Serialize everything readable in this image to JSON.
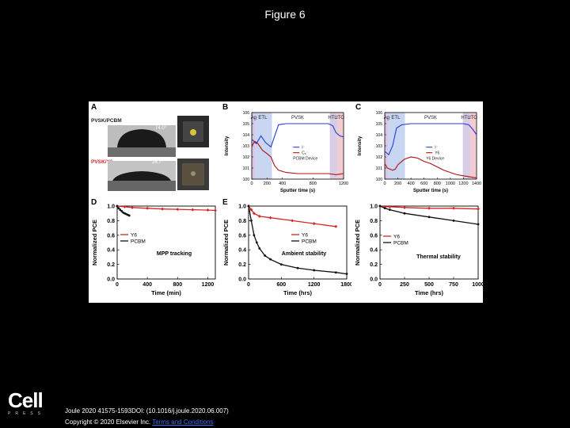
{
  "page_title": "Figure 6",
  "footer": {
    "citation": "Joule 2020 41575-1593DOI: (10.1016/j.joule.2020.06.007)",
    "copyright_prefix": "Copyright © 2020 Elsevier Inc.",
    "copyright_link": "Terms and Conditions"
  },
  "logo": {
    "main": "Cell",
    "sub": "PRESS"
  },
  "panels": {
    "A": {
      "letter": "A",
      "label_top": "PVSK/PCBM",
      "label_bottom": "PVSK/Y6",
      "angle_top": "74.0°",
      "angle_bottom": "26.7°"
    },
    "B": {
      "letter": "B"
    },
    "C": {
      "letter": "C"
    },
    "D": {
      "letter": "D"
    },
    "E": {
      "letter": "E"
    },
    "F": {
      "letter": ""
    }
  },
  "colors": {
    "red": "#d62728",
    "black": "#111111",
    "blue": "#1f3fd6",
    "dark_red": "#b01010"
  },
  "chart_data": [
    {
      "id": "B",
      "type": "line",
      "title": "",
      "xlabel": "Sputter time (s)",
      "ylabel": "Intensity",
      "xlim": [
        0,
        1200
      ],
      "ylim_exponent": [
        0,
        6
      ],
      "log_y": true,
      "x_ticks": [
        "0",
        "200",
        "400",
        "800",
        "1200"
      ],
      "y_ticks": [
        "10^0",
        "10^1",
        "10^2",
        "10^3",
        "10^4",
        "10^5",
        "10^6"
      ],
      "regions": [
        "Ag",
        "ETL",
        "PVSK",
        "HTL",
        "ITO"
      ],
      "legend": [
        "I⁻",
        "C₆⁻",
        "PCBM Device"
      ],
      "series": [
        {
          "name": "I⁻",
          "x": [
            0,
            60,
            120,
            180,
            250,
            350,
            450,
            600,
            800,
            1000,
            1060,
            1100,
            1150,
            1200
          ],
          "y": [
            3.6,
            3.2,
            3.9,
            3.3,
            2.9,
            4.9,
            5.0,
            5.0,
            5.0,
            5.0,
            4.8,
            4.2,
            3.9,
            3.8
          ]
        },
        {
          "name": "C₆⁻",
          "x": [
            0,
            40,
            80,
            140,
            200,
            250,
            300,
            350,
            450,
            600,
            800,
            1000,
            1100,
            1200
          ],
          "y": [
            3.0,
            3.4,
            3.2,
            2.6,
            2.3,
            2.0,
            1.2,
            0.8,
            0.6,
            0.5,
            0.5,
            0.5,
            0.4,
            0.5
          ]
        }
      ]
    },
    {
      "id": "C",
      "type": "line",
      "title": "",
      "xlabel": "Sputter time (s)",
      "ylabel": "Intensity",
      "xlim": [
        0,
        1400
      ],
      "ylim_exponent": [
        0,
        6
      ],
      "log_y": true,
      "x_ticks": [
        "0",
        "200",
        "400",
        "600",
        "800",
        "1000",
        "1200",
        "1400"
      ],
      "y_ticks": [
        "10^0",
        "10^1",
        "10^2",
        "10^3",
        "10^4",
        "10^5",
        "10^6"
      ],
      "regions": [
        "Ag",
        "ETL",
        "PVSK",
        "HTL",
        "ITO"
      ],
      "legend": [
        "I⁻",
        "Y6",
        "Y6 Device"
      ],
      "series": [
        {
          "name": "I⁻",
          "x": [
            0,
            60,
            120,
            180,
            260,
            400,
            600,
            800,
            1000,
            1200,
            1280,
            1340,
            1400
          ],
          "y": [
            2.5,
            2.2,
            3.0,
            4.6,
            4.9,
            5.0,
            5.0,
            5.0,
            5.0,
            5.0,
            4.9,
            4.5,
            4.0
          ]
        },
        {
          "name": "Y6",
          "x": [
            0,
            40,
            80,
            120,
            160,
            200,
            300,
            400,
            500,
            600,
            700,
            800,
            900,
            1000,
            1100,
            1200,
            1300,
            1400
          ],
          "y": [
            1.4,
            1.0,
            0.9,
            0.8,
            0.9,
            1.3,
            1.8,
            2.0,
            1.9,
            1.6,
            1.4,
            1.1,
            0.8,
            0.6,
            0.4,
            0.3,
            0.2,
            0.1
          ]
        }
      ]
    },
    {
      "id": "D",
      "type": "line",
      "title": "",
      "annotation": "MPP tracking",
      "xlabel": "Time (min)",
      "ylabel": "Normalized PCE",
      "xlim": [
        0,
        1300
      ],
      "ylim": [
        0,
        1.0
      ],
      "x_ticks": [
        "0",
        "400",
        "800",
        "1200"
      ],
      "y_ticks": [
        "0.0",
        "0.2",
        "0.4",
        "0.6",
        "0.8",
        "1.0"
      ],
      "legend_position": "center-left",
      "series": [
        {
          "name": "Y6",
          "x": [
            0,
            100,
            200,
            400,
            600,
            800,
            1000,
            1200,
            1300
          ],
          "y": [
            1.0,
            0.99,
            0.98,
            0.97,
            0.96,
            0.955,
            0.95,
            0.945,
            0.94
          ]
        },
        {
          "name": "PCBM",
          "x": [
            0,
            20,
            40,
            60,
            80,
            100,
            120,
            140,
            160
          ],
          "y": [
            1.0,
            0.97,
            0.95,
            0.93,
            0.91,
            0.9,
            0.89,
            0.88,
            0.87
          ]
        }
      ]
    },
    {
      "id": "E",
      "type": "line",
      "title": "",
      "annotation": "Ambient stability",
      "xlabel": "Time (hrs)",
      "ylabel": "Normalized PCE",
      "xlim": [
        0,
        1800
      ],
      "ylim": [
        0,
        1.0
      ],
      "x_ticks": [
        "0",
        "600",
        "1200",
        "1800"
      ],
      "y_ticks": [
        "0.0",
        "0.2",
        "0.4",
        "0.6",
        "0.8",
        "1.0"
      ],
      "legend_position": "center-right",
      "series": [
        {
          "name": "Y6",
          "x": [
            0,
            50,
            100,
            200,
            400,
            800,
            1200,
            1600
          ],
          "y": [
            1.0,
            0.95,
            0.9,
            0.86,
            0.84,
            0.8,
            0.76,
            0.72
          ]
        },
        {
          "name": "PCBM",
          "x": [
            0,
            50,
            100,
            150,
            200,
            300,
            400,
            600,
            900,
            1200,
            1600,
            1800
          ],
          "y": [
            1.0,
            0.8,
            0.6,
            0.5,
            0.42,
            0.32,
            0.27,
            0.2,
            0.15,
            0.12,
            0.09,
            0.07
          ]
        }
      ]
    },
    {
      "id": "F",
      "type": "line",
      "title": "",
      "annotation": "Thermal stability",
      "xlabel": "Time (hrs)",
      "ylabel": "Normalized PCE",
      "xlim": [
        0,
        1000
      ],
      "ylim": [
        0,
        1.0
      ],
      "x_ticks": [
        "0",
        "250",
        "500",
        "750",
        "1000"
      ],
      "y_ticks": [
        "0.0",
        "0.2",
        "0.4",
        "0.6",
        "0.8",
        "1.0"
      ],
      "legend_position": "center-left",
      "series": [
        {
          "name": "Y6",
          "x": [
            0,
            50,
            100,
            250,
            500,
            750,
            1000
          ],
          "y": [
            1.0,
            0.99,
            0.99,
            0.98,
            0.97,
            0.97,
            0.96
          ]
        },
        {
          "name": "PCBM",
          "x": [
            0,
            50,
            100,
            250,
            500,
            750,
            1000
          ],
          "y": [
            1.0,
            0.97,
            0.95,
            0.9,
            0.85,
            0.8,
            0.75
          ]
        }
      ]
    }
  ]
}
